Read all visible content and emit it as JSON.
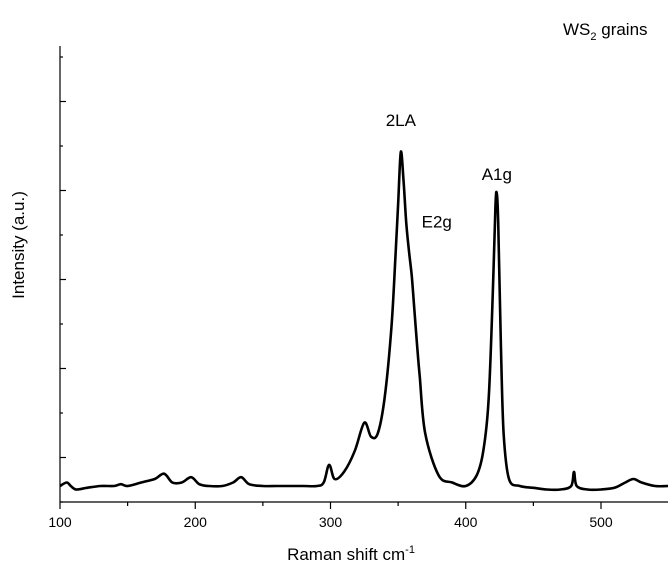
{
  "chart_data": {
    "type": "line",
    "title": "WS",
    "title_subscript": "2",
    "title_suffix": " grains",
    "xlabel": "Raman shift cm",
    "xlabel_superscript": "-1",
    "ylabel": "Intensity (a.u.)",
    "xlim": [
      100,
      550
    ],
    "ylim": [
      0,
      1.0
    ],
    "x_ticks": [
      100,
      200,
      300,
      400,
      500
    ],
    "x_tick_labels": [
      "100",
      "200",
      "300",
      "400",
      "500"
    ],
    "y_tick_labels_shown": false,
    "grid": false,
    "legend": "none",
    "line_color": "#000000",
    "annotations": [
      {
        "text": "2LA",
        "x": 352,
        "y": 1.0
      },
      {
        "text": "E2g",
        "x": 360,
        "y": 0.78
      },
      {
        "text": "A1g",
        "x": 423,
        "y": 0.88
      }
    ],
    "series": [
      {
        "x": [
          100,
          105,
          108,
          112,
          120,
          130,
          140,
          145,
          150,
          160,
          170,
          177,
          183,
          190,
          197,
          203,
          210,
          220,
          228,
          234,
          240,
          250,
          260,
          270,
          280,
          290,
          295,
          299,
          303,
          310,
          318,
          325,
          330,
          335,
          340,
          345,
          348,
          350,
          352,
          354,
          356,
          358,
          360,
          362,
          364,
          366,
          370,
          380,
          390,
          400,
          408,
          413,
          417,
          420,
          422,
          423,
          424,
          426,
          428,
          432,
          440,
          450,
          460,
          470,
          478,
          480,
          482,
          490,
          500,
          510,
          518,
          524,
          530,
          540,
          550
        ],
        "y": [
          0.05,
          0.06,
          0.05,
          0.04,
          0.045,
          0.05,
          0.05,
          0.055,
          0.05,
          0.06,
          0.07,
          0.085,
          0.06,
          0.06,
          0.075,
          0.055,
          0.05,
          0.05,
          0.06,
          0.075,
          0.055,
          0.05,
          0.05,
          0.05,
          0.05,
          0.05,
          0.06,
          0.11,
          0.07,
          0.09,
          0.15,
          0.23,
          0.19,
          0.2,
          0.3,
          0.5,
          0.7,
          0.85,
          1.0,
          0.92,
          0.8,
          0.72,
          0.65,
          0.55,
          0.45,
          0.36,
          0.2,
          0.08,
          0.06,
          0.05,
          0.08,
          0.15,
          0.3,
          0.6,
          0.85,
          0.88,
          0.8,
          0.45,
          0.2,
          0.07,
          0.05,
          0.045,
          0.04,
          0.04,
          0.05,
          0.09,
          0.05,
          0.04,
          0.04,
          0.045,
          0.06,
          0.07,
          0.06,
          0.05,
          0.05
        ]
      }
    ]
  }
}
